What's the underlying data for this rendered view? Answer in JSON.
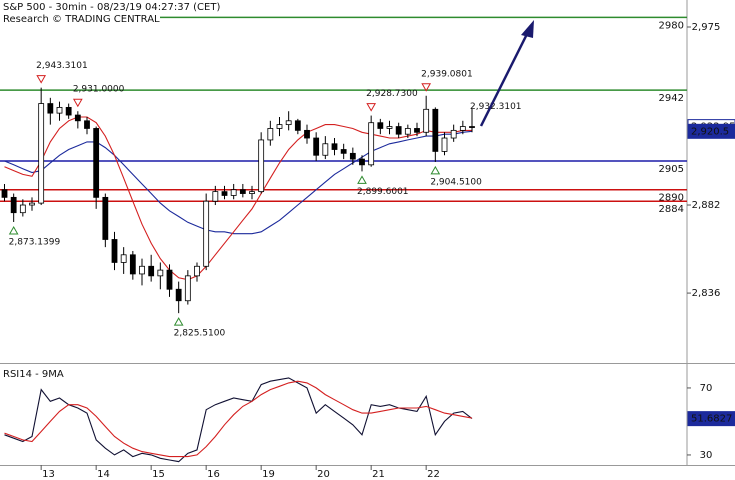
{
  "chart_data": [
    {
      "type": "candlestick",
      "title": "S&P 500 - 30min - 08/23/19 04:27:37 (CET)",
      "subtitle": "Research © TRADING CENTRAL",
      "open": [
        2890,
        2886,
        2878,
        2882,
        2883,
        2935,
        2930,
        2933,
        2929,
        2926,
        2922,
        2886,
        2864,
        2852,
        2856,
        2846,
        2850,
        2845,
        2848,
        2838,
        2832,
        2845,
        2850,
        2884,
        2889,
        2887,
        2890,
        2888,
        2889,
        2916,
        2922,
        2924,
        2926,
        2921,
        2917,
        2908,
        2914,
        2911,
        2909,
        2906,
        2903,
        2925,
        2922,
        2923,
        2919,
        2922,
        2920,
        2932,
        2910,
        2917,
        2921,
        2923
      ],
      "high": [
        2893,
        2888,
        2885,
        2886,
        2943.3101,
        2938,
        2936,
        2935,
        2931,
        2928,
        2923,
        2888,
        2868,
        2860,
        2858,
        2854,
        2856,
        2852,
        2851,
        2842,
        2848,
        2852,
        2888,
        2892,
        2892,
        2893,
        2893,
        2892,
        2920,
        2926,
        2928,
        2931,
        2927,
        2924,
        2920,
        2918,
        2917,
        2914,
        2912,
        2908,
        2928.73,
        2927,
        2926,
        2925,
        2924,
        2925,
        2939.0801,
        2933,
        2920,
        2924,
        2926,
        2932.3101
      ],
      "low": [
        2884,
        2873.1399,
        2876,
        2879,
        2882,
        2924,
        2926,
        2927,
        2922,
        2919,
        2880,
        2860,
        2848,
        2846,
        2843,
        2840,
        2842,
        2838,
        2834,
        2825.51,
        2830,
        2842,
        2848,
        2882,
        2885,
        2885,
        2886,
        2885,
        2888,
        2913,
        2918,
        2921,
        2919,
        2914,
        2905,
        2906,
        2908,
        2906,
        2903,
        2899.6001,
        2902,
        2919,
        2919,
        2917,
        2917,
        2918,
        2918,
        2904.51,
        2908,
        2915,
        2919,
        2920
      ],
      "close": [
        2886,
        2878,
        2882,
        2883,
        2935,
        2930,
        2933,
        2929,
        2926,
        2922,
        2886,
        2864,
        2852,
        2856,
        2846,
        2850,
        2845,
        2848,
        2838,
        2832,
        2845,
        2850,
        2884,
        2889,
        2887,
        2890,
        2888,
        2889,
        2916,
        2922,
        2924,
        2926,
        2921,
        2917,
        2908,
        2914,
        2911,
        2909,
        2906,
        2903,
        2925,
        2922,
        2923,
        2919,
        2922,
        2920,
        2932,
        2910,
        2917,
        2921,
        2923,
        2922.95
      ],
      "ma_fast": {
        "color": "#d42020",
        "values": [
          2902,
          2900,
          2898,
          2897,
          2905,
          2915,
          2922,
          2926,
          2928,
          2928,
          2925,
          2918,
          2908,
          2896,
          2884,
          2872,
          2862,
          2854,
          2848,
          2844,
          2843,
          2845,
          2850,
          2856,
          2862,
          2868,
          2874,
          2880,
          2888,
          2896,
          2904,
          2911,
          2916,
          2920,
          2922,
          2924,
          2924,
          2923,
          2922,
          2920,
          2919,
          2918,
          2917,
          2917,
          2918,
          2919,
          2921,
          2920,
          2920,
          2920,
          2921,
          2921
        ]
      },
      "ma_slow": {
        "color": "#1c2a9c",
        "values": [
          2905,
          2903,
          2901,
          2899,
          2900,
          2904,
          2908,
          2911,
          2913,
          2915,
          2915,
          2912,
          2908,
          2903,
          2898,
          2893,
          2888,
          2883,
          2879,
          2876,
          2873,
          2871,
          2869,
          2868,
          2868,
          2867,
          2867,
          2867,
          2868,
          2871,
          2874,
          2878,
          2882,
          2886,
          2890,
          2894,
          2898,
          2901,
          2904,
          2907,
          2910,
          2912,
          2914,
          2915,
          2916,
          2917,
          2918,
          2918,
          2919,
          2919,
          2920,
          2920.5
        ]
      },
      "ylim": [
        2800,
        2989.1
      ],
      "yticks": [
        {
          "value": 2975,
          "label": "2,975"
        },
        {
          "value": 2882,
          "label": "2,882"
        },
        {
          "value": 2836,
          "label": "2,836"
        }
      ],
      "levels": [
        {
          "value": 2980,
          "color": "#2e8b2e"
        },
        {
          "value": 2942,
          "color": "#2e8b2e"
        },
        {
          "value": 2905,
          "color": "#1c1ca8"
        },
        {
          "value": 2890,
          "color": "#cc1111"
        },
        {
          "value": 2884,
          "color": "#cc1111"
        }
      ],
      "annotations": [
        {
          "value": 2943.3101,
          "label": "2,943.3101",
          "marker": "down"
        },
        {
          "value": 2873.1399,
          "label": "2,873.1399",
          "marker": "up"
        },
        {
          "value": 2825.51,
          "label": "2,825.5100",
          "marker": "up"
        },
        {
          "value": 2931,
          "label": "2,931.0000",
          "marker": "down"
        },
        {
          "value": 2928.73,
          "label": "2,928.7300",
          "marker": "down"
        },
        {
          "value": 2899.6001,
          "label": "2,899.6001",
          "marker": "up"
        },
        {
          "value": 2939.0801,
          "label": "2,939.0801",
          "marker": "down"
        },
        {
          "value": 2904.51,
          "label": "2,904.5100",
          "marker": "up"
        },
        {
          "value": 2932.3101,
          "label": "2,932.3101",
          "marker": "none"
        }
      ],
      "price_labels": [
        {
          "value": 2922.95,
          "label": "2,922.95",
          "color": "#ffffff"
        },
        {
          "value": 2920.5,
          "label": "2,920.5",
          "color": "#1c2a9c"
        }
      ]
    },
    {
      "type": "line",
      "title": "RSI14 - 9MA",
      "categories": [
        null,
        null,
        null,
        null,
        "13",
        null,
        null,
        null,
        null,
        null,
        "14",
        null,
        null,
        null,
        null,
        null,
        "15",
        null,
        null,
        null,
        null,
        null,
        "16",
        null,
        null,
        null,
        null,
        null,
        "19",
        null,
        null,
        null,
        null,
        null,
        "20",
        null,
        null,
        null,
        null,
        null,
        "21",
        null,
        null,
        null,
        null,
        null,
        "22",
        null,
        null,
        null,
        null,
        null
      ],
      "series": [
        {
          "name": "RSI14",
          "color": "#111133",
          "values": [
            42,
            40,
            38,
            41,
            69,
            62,
            64,
            60,
            58,
            55,
            39,
            34,
            30,
            33,
            29,
            31,
            30,
            28,
            27,
            26,
            31,
            33,
            57,
            60,
            62,
            64,
            63,
            62,
            72,
            74,
            75,
            76,
            73,
            70,
            55,
            60,
            56,
            52,
            48,
            42,
            60,
            59,
            60,
            58,
            57,
            56,
            65,
            42,
            50,
            55,
            56,
            51.6827
          ]
        },
        {
          "name": "9MA",
          "color": "#d42020",
          "values": [
            43,
            41,
            39,
            38,
            44,
            50,
            56,
            60,
            60,
            58,
            53,
            47,
            41,
            37,
            34,
            32,
            31,
            30,
            29,
            29,
            29,
            30,
            35,
            41,
            48,
            54,
            59,
            62,
            66,
            69,
            71,
            73,
            74,
            73,
            70,
            66,
            63,
            60,
            57,
            55,
            55,
            56,
            57,
            58,
            58,
            58,
            59,
            57,
            55,
            54,
            53,
            52
          ]
        }
      ],
      "ylim": [
        24,
        83.7
      ],
      "yticks": [
        70,
        30
      ],
      "price_labels": [
        {
          "value": 51.6827,
          "label": "51.6827",
          "color": "#1c2a9c"
        }
      ]
    }
  ]
}
